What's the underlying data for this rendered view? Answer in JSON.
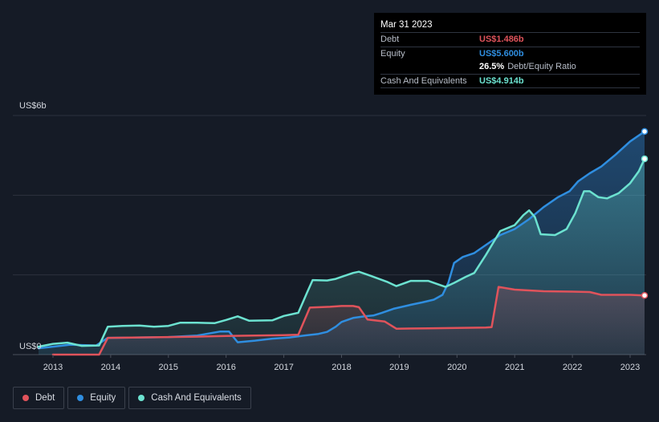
{
  "tooltip": {
    "date": "Mar 31 2023",
    "debt_label": "Debt",
    "debt_value": "US$1.486b",
    "equity_label": "Equity",
    "equity_value": "US$5.600b",
    "ratio_value": "26.5%",
    "ratio_label": "Debt/Equity Ratio",
    "cash_label": "Cash And Equivalents",
    "cash_value": "US$4.914b"
  },
  "legend": [
    {
      "label": "Debt",
      "color": "#e0535b"
    },
    {
      "label": "Equity",
      "color": "#2f8ee0"
    },
    {
      "label": "Cash And Equivalents",
      "color": "#6ce2d0"
    }
  ],
  "chart_data": {
    "type": "area",
    "ylabel_top": "US$6b",
    "ylabel_bottom": "US$0",
    "ylim": [
      0,
      6
    ],
    "xlim": [
      2012.75,
      2023.25
    ],
    "x_ticks": [
      "2013",
      "2014",
      "2015",
      "2016",
      "2017",
      "2018",
      "2019",
      "2020",
      "2021",
      "2022",
      "2023"
    ],
    "x_tick_values": [
      2013,
      2014,
      2015,
      2016,
      2017,
      2018,
      2019,
      2020,
      2021,
      2022,
      2023
    ],
    "grid": true,
    "legend_position": "bottom-left",
    "series": [
      {
        "name": "Debt",
        "color": "#e0535b",
        "points": [
          [
            2013.0,
            0.0
          ],
          [
            2013.8,
            0.0
          ],
          [
            2013.95,
            0.42
          ],
          [
            2014.5,
            0.43
          ],
          [
            2015.0,
            0.44
          ],
          [
            2015.5,
            0.45
          ],
          [
            2016.0,
            0.47
          ],
          [
            2016.5,
            0.48
          ],
          [
            2017.0,
            0.49
          ],
          [
            2017.25,
            0.5
          ],
          [
            2017.45,
            1.18
          ],
          [
            2017.8,
            1.2
          ],
          [
            2018.0,
            1.22
          ],
          [
            2018.2,
            1.22
          ],
          [
            2018.3,
            1.19
          ],
          [
            2018.45,
            0.88
          ],
          [
            2018.75,
            0.83
          ],
          [
            2018.95,
            0.65
          ],
          [
            2019.5,
            0.66
          ],
          [
            2020.0,
            0.67
          ],
          [
            2020.5,
            0.68
          ],
          [
            2020.6,
            0.69
          ],
          [
            2020.72,
            1.7
          ],
          [
            2021.0,
            1.63
          ],
          [
            2021.5,
            1.59
          ],
          [
            2022.0,
            1.58
          ],
          [
            2022.3,
            1.57
          ],
          [
            2022.5,
            1.5
          ],
          [
            2023.0,
            1.5
          ],
          [
            2023.25,
            1.486
          ]
        ]
      },
      {
        "name": "Equity",
        "color": "#2f8ee0",
        "points": [
          [
            2012.75,
            0.16
          ],
          [
            2013.0,
            0.2
          ],
          [
            2013.3,
            0.25
          ],
          [
            2013.5,
            0.24
          ],
          [
            2013.75,
            0.23
          ],
          [
            2013.95,
            0.42
          ],
          [
            2014.5,
            0.43
          ],
          [
            2015.0,
            0.44
          ],
          [
            2015.5,
            0.48
          ],
          [
            2015.9,
            0.58
          ],
          [
            2016.05,
            0.58
          ],
          [
            2016.2,
            0.31
          ],
          [
            2016.5,
            0.35
          ],
          [
            2016.8,
            0.4
          ],
          [
            2017.1,
            0.43
          ],
          [
            2017.3,
            0.47
          ],
          [
            2017.6,
            0.52
          ],
          [
            2017.75,
            0.57
          ],
          [
            2017.9,
            0.7
          ],
          [
            2018.0,
            0.82
          ],
          [
            2018.2,
            0.92
          ],
          [
            2018.4,
            0.96
          ],
          [
            2018.55,
            0.98
          ],
          [
            2018.7,
            1.05
          ],
          [
            2018.9,
            1.15
          ],
          [
            2019.2,
            1.25
          ],
          [
            2019.4,
            1.31
          ],
          [
            2019.6,
            1.38
          ],
          [
            2019.75,
            1.5
          ],
          [
            2019.85,
            1.8
          ],
          [
            2019.95,
            2.3
          ],
          [
            2020.1,
            2.45
          ],
          [
            2020.3,
            2.55
          ],
          [
            2020.5,
            2.75
          ],
          [
            2020.75,
            3.0
          ],
          [
            2021.0,
            3.15
          ],
          [
            2021.25,
            3.4
          ],
          [
            2021.5,
            3.7
          ],
          [
            2021.75,
            3.95
          ],
          [
            2021.95,
            4.1
          ],
          [
            2022.1,
            4.35
          ],
          [
            2022.3,
            4.55
          ],
          [
            2022.5,
            4.72
          ],
          [
            2022.75,
            5.02
          ],
          [
            2023.0,
            5.35
          ],
          [
            2023.25,
            5.6
          ]
        ]
      },
      {
        "name": "Cash And Equivalents",
        "color": "#6ce2d0",
        "points": [
          [
            2012.75,
            0.2
          ],
          [
            2013.0,
            0.27
          ],
          [
            2013.25,
            0.3
          ],
          [
            2013.5,
            0.22
          ],
          [
            2013.8,
            0.23
          ],
          [
            2013.95,
            0.7
          ],
          [
            2014.2,
            0.72
          ],
          [
            2014.5,
            0.73
          ],
          [
            2014.75,
            0.7
          ],
          [
            2015.0,
            0.72
          ],
          [
            2015.2,
            0.8
          ],
          [
            2015.5,
            0.8
          ],
          [
            2015.8,
            0.79
          ],
          [
            2016.0,
            0.87
          ],
          [
            2016.2,
            0.96
          ],
          [
            2016.4,
            0.85
          ],
          [
            2016.8,
            0.86
          ],
          [
            2017.0,
            0.97
          ],
          [
            2017.25,
            1.05
          ],
          [
            2017.4,
            1.55
          ],
          [
            2017.5,
            1.87
          ],
          [
            2017.75,
            1.86
          ],
          [
            2017.9,
            1.9
          ],
          [
            2018.0,
            1.95
          ],
          [
            2018.2,
            2.05
          ],
          [
            2018.3,
            2.08
          ],
          [
            2018.5,
            1.98
          ],
          [
            2018.8,
            1.82
          ],
          [
            2018.95,
            1.72
          ],
          [
            2019.2,
            1.85
          ],
          [
            2019.5,
            1.85
          ],
          [
            2019.7,
            1.75
          ],
          [
            2019.8,
            1.7
          ],
          [
            2019.95,
            1.8
          ],
          [
            2020.15,
            1.95
          ],
          [
            2020.3,
            2.05
          ],
          [
            2020.5,
            2.5
          ],
          [
            2020.75,
            3.1
          ],
          [
            2021.0,
            3.25
          ],
          [
            2021.15,
            3.5
          ],
          [
            2021.25,
            3.62
          ],
          [
            2021.35,
            3.45
          ],
          [
            2021.45,
            3.02
          ],
          [
            2021.7,
            3.0
          ],
          [
            2021.9,
            3.15
          ],
          [
            2022.05,
            3.55
          ],
          [
            2022.2,
            4.1
          ],
          [
            2022.3,
            4.1
          ],
          [
            2022.45,
            3.95
          ],
          [
            2022.6,
            3.92
          ],
          [
            2022.8,
            4.05
          ],
          [
            2023.0,
            4.3
          ],
          [
            2023.15,
            4.6
          ],
          [
            2023.25,
            4.914
          ]
        ]
      }
    ]
  }
}
